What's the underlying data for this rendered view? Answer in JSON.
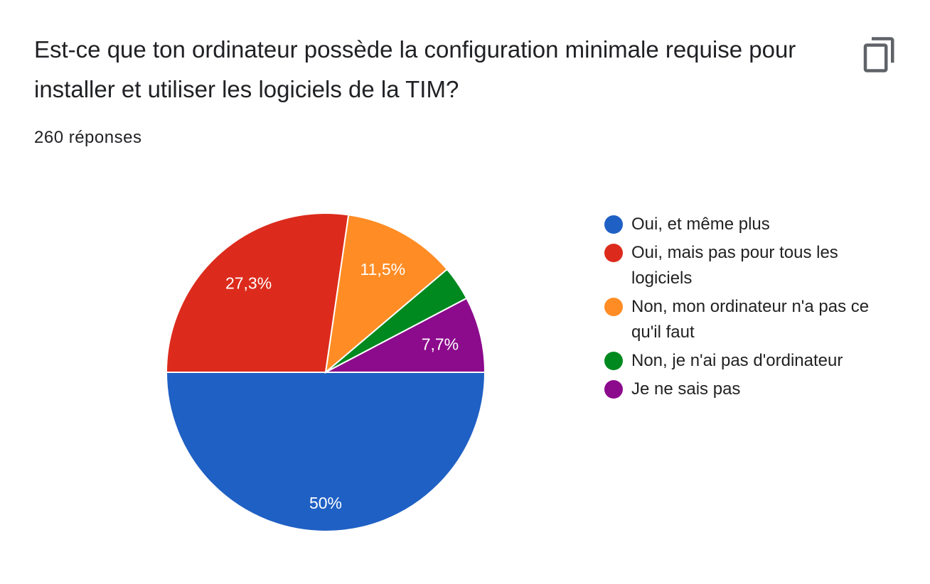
{
  "header": {
    "title": "Est-ce que ton ordinateur possède la configuration minimale requise pour installer et utiliser les logiciels de la TIM?",
    "responses": "260 réponses",
    "copy_icon": "copy-icon"
  },
  "chart_data": {
    "type": "pie",
    "categories": [
      "Oui, et même plus",
      "Oui, mais pas pour tous les logiciels",
      "Non, mon ordinateur n'a pas ce qu'il faut",
      "Non, je n'ai pas d'ordinateur",
      "Je ne sais pas"
    ],
    "values": [
      50,
      27.3,
      11.5,
      3.5,
      7.7
    ],
    "labels": [
      "50%",
      "27,3%",
      "11,5%",
      "",
      "7,7%"
    ],
    "colors": [
      "#1f60c4",
      "#dc2b1c",
      "#ff8c24",
      "#00891f",
      "#8c0a8c"
    ],
    "legend": "right"
  }
}
